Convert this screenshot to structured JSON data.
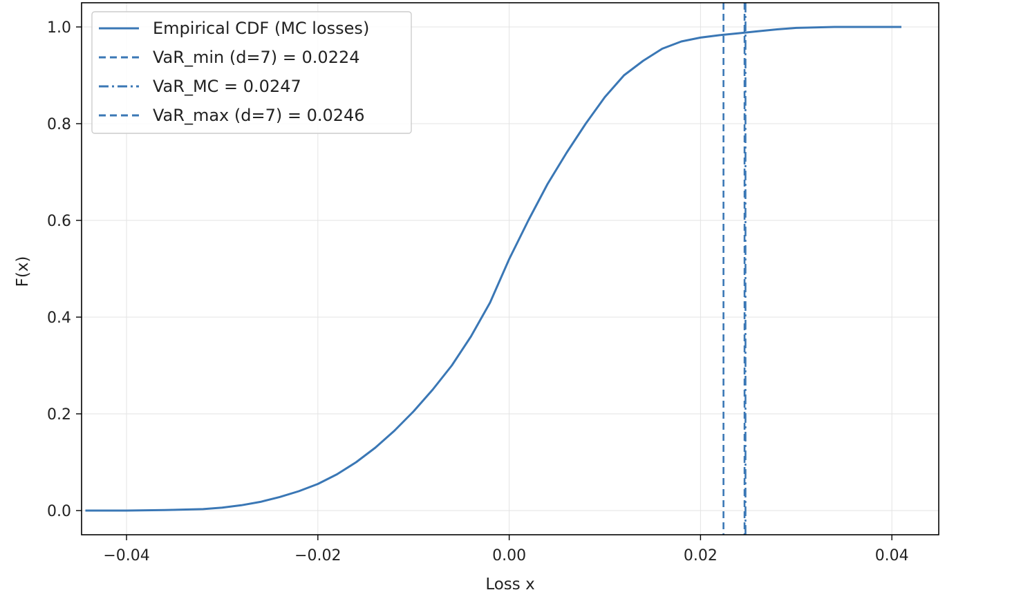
{
  "chart_data": {
    "type": "line",
    "title": "",
    "xlabel": "Loss x",
    "ylabel": "F(x)",
    "xlim": [
      -0.0447,
      0.0449
    ],
    "ylim": [
      -0.05,
      1.05
    ],
    "xticks": [
      -0.04,
      -0.02,
      0.0,
      0.02,
      0.04
    ],
    "xtick_labels": [
      "−0.04",
      "−0.02",
      "0.00",
      "0.02",
      "0.04"
    ],
    "yticks": [
      0.0,
      0.2,
      0.4,
      0.6,
      0.8,
      1.0
    ],
    "ytick_labels": [
      "0.0",
      "0.2",
      "0.4",
      "0.6",
      "0.8",
      "1.0"
    ],
    "grid": true,
    "legend_position": "top-left",
    "color": "#3a77b5",
    "series": [
      {
        "name": "Empirical CDF (MC losses)",
        "style": "solid",
        "x": [
          -0.0443,
          -0.04,
          -0.036,
          -0.032,
          -0.03,
          -0.028,
          -0.026,
          -0.024,
          -0.022,
          -0.02,
          -0.018,
          -0.016,
          -0.014,
          -0.012,
          -0.01,
          -0.008,
          -0.006,
          -0.004,
          -0.002,
          0.0,
          0.002,
          0.004,
          0.006,
          0.008,
          0.01,
          0.012,
          0.014,
          0.016,
          0.018,
          0.02,
          0.022,
          0.024,
          0.026,
          0.028,
          0.03,
          0.034,
          0.038,
          0.041
        ],
        "y": [
          0.0,
          0.0,
          0.001,
          0.003,
          0.006,
          0.011,
          0.018,
          0.028,
          0.04,
          0.055,
          0.075,
          0.1,
          0.13,
          0.165,
          0.205,
          0.25,
          0.3,
          0.36,
          0.43,
          0.52,
          0.6,
          0.675,
          0.74,
          0.8,
          0.855,
          0.9,
          0.93,
          0.955,
          0.97,
          0.978,
          0.983,
          0.987,
          0.991,
          0.995,
          0.998,
          1.0,
          1.0,
          1.0
        ]
      },
      {
        "name": "VaR_min (d=7) = 0.0224",
        "style": "dashed",
        "vline": 0.0224
      },
      {
        "name": "VaR_MC = 0.0247",
        "style": "dashdot",
        "vline": 0.0247
      },
      {
        "name": "VaR_max (d=7) = 0.0246",
        "style": "dashed",
        "vline": 0.0246
      }
    ]
  }
}
